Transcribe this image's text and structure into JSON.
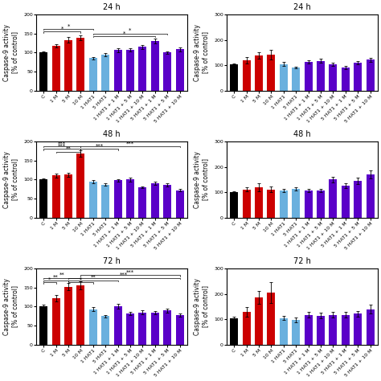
{
  "chart_data": [
    {
      "type": "bar",
      "title": "24 h",
      "ylabel": "Caspase-9 activity\n[% of control]",
      "ylim": [
        0,
        200
      ],
      "yticks": [
        0,
        50,
        100,
        150,
        200
      ],
      "categories": [
        "C",
        "1 M",
        "5 M",
        "10 M",
        "1 HAT1",
        "5 HAT1",
        "1 HAT1 + 1 M",
        "1 HAT1 + 5 M",
        "1 HAT1 + 10 M",
        "5 HAT1 + 1 M",
        "5 HAT1 + 5 M",
        "5 HAT1 + 10 M"
      ],
      "values": [
        100,
        118,
        133,
        138,
        86,
        95,
        107,
        108,
        115,
        130,
        100,
        109
      ],
      "errors": [
        3,
        5,
        7,
        6,
        3,
        4,
        5,
        4,
        5,
        6,
        4,
        5
      ],
      "colors": [
        "#000000",
        "#cc0000",
        "#cc0000",
        "#cc0000",
        "#6ab0de",
        "#6ab0de",
        "#5a00c8",
        "#5a00c8",
        "#5a00c8",
        "#5a00c8",
        "#5a00c8",
        "#5a00c8"
      ],
      "significance": [
        {
          "from": "C",
          "to": "10 M",
          "y": 155,
          "label": "*"
        },
        {
          "from": "C",
          "to": "1 HAT1",
          "y": 162,
          "label": "*"
        },
        {
          "from": "1 HAT1",
          "to": "5 HAT1 + 1 M",
          "y": 143,
          "label": "*"
        },
        {
          "from": "1 HAT1",
          "to": "5 HAT1 + 5 M",
          "y": 150,
          "label": "*"
        }
      ]
    },
    {
      "type": "bar",
      "title": "24 h",
      "ylabel": "Caspase-9 activity\n[% of control]",
      "ylim": [
        0,
        300
      ],
      "yticks": [
        0,
        100,
        200,
        300
      ],
      "categories": [
        "C",
        "1 M",
        "5 M",
        "10 M",
        "1 HAT1",
        "5 HAT1",
        "1 HAT1 + 1 M",
        "1 HAT1 + 5 M",
        "1 HAT1 + 10 M",
        "5 HAT1 + 1 M",
        "5 HAT1 + 5 M",
        "5 HAT1 + 10 M"
      ],
      "values": [
        103,
        121,
        138,
        142,
        105,
        92,
        115,
        118,
        105,
        92,
        110,
        122
      ],
      "errors": [
        5,
        12,
        12,
        18,
        8,
        4,
        6,
        8,
        6,
        5,
        7,
        9
      ],
      "colors": [
        "#000000",
        "#cc0000",
        "#cc0000",
        "#cc0000",
        "#6ab0de",
        "#6ab0de",
        "#5a00c8",
        "#5a00c8",
        "#5a00c8",
        "#5a00c8",
        "#5a00c8",
        "#5a00c8"
      ],
      "significance": []
    },
    {
      "type": "bar",
      "title": "48 h",
      "ylabel": "Caspase-9 activity\n[% of control]",
      "ylim": [
        0,
        200
      ],
      "yticks": [
        0,
        50,
        100,
        150,
        200
      ],
      "categories": [
        "C",
        "1 M",
        "5 M",
        "10 M",
        "1 HAT1",
        "5 HAT1",
        "1 HAT1 + 1 M",
        "1 HAT1 + 5 M",
        "1 HAT1 + 10 M",
        "5 HAT1 + 1 M",
        "5 HAT1 + 5 M",
        "5 HAT1 + 10 M"
      ],
      "values": [
        100,
        111,
        113,
        168,
        95,
        87,
        98,
        100,
        80,
        91,
        86,
        72
      ],
      "errors": [
        3,
        5,
        5,
        8,
        4,
        3,
        4,
        5,
        3,
        4,
        4,
        3
      ],
      "colors": [
        "#000000",
        "#cc0000",
        "#cc0000",
        "#cc0000",
        "#6ab0de",
        "#6ab0de",
        "#5a00c8",
        "#5a00c8",
        "#5a00c8",
        "#5a00c8",
        "#5a00c8",
        "#5a00c8"
      ],
      "significance": [
        {
          "from": "C",
          "to": "10 M",
          "y": 180,
          "label": "***"
        },
        {
          "from": "C",
          "to": "10 M",
          "y": 187,
          "label": "***"
        },
        {
          "from": "1 M",
          "to": "10 M",
          "y": 173,
          "label": "**"
        },
        {
          "from": "10 M",
          "to": "1 HAT1 + 1 M",
          "y": 180,
          "label": "***"
        },
        {
          "from": "10 M",
          "to": "5 HAT1 + 10 M",
          "y": 187,
          "label": "***"
        }
      ]
    },
    {
      "type": "bar",
      "title": "48 h",
      "ylabel": "Caspase-9 activity\n[% of control]",
      "ylim": [
        0,
        300
      ],
      "yticks": [
        0,
        100,
        200,
        300
      ],
      "categories": [
        "C",
        "1 M",
        "5 M",
        "10 M",
        "1 HAT1",
        "5 HAT1",
        "1 HAT1 + 1 M",
        "1 HAT1 + 5 M",
        "1 HAT1 + 10 M",
        "5 HAT1 + 1 M",
        "5 HAT1 + 5 M",
        "5 HAT1 + 10 M"
      ],
      "values": [
        100,
        111,
        120,
        112,
        107,
        113,
        108,
        108,
        150,
        127,
        145,
        170
      ],
      "errors": [
        5,
        8,
        15,
        10,
        7,
        6,
        7,
        6,
        12,
        9,
        12,
        15
      ],
      "colors": [
        "#000000",
        "#cc0000",
        "#cc0000",
        "#cc0000",
        "#6ab0de",
        "#6ab0de",
        "#5a00c8",
        "#5a00c8",
        "#5a00c8",
        "#5a00c8",
        "#5a00c8",
        "#5a00c8"
      ],
      "significance": []
    },
    {
      "type": "bar",
      "title": "72 h",
      "ylabel": "Caspase-9 activity\n[% of control]",
      "ylim": [
        0,
        200
      ],
      "yticks": [
        0,
        50,
        100,
        150,
        200
      ],
      "categories": [
        "C",
        "1 M",
        "5 M",
        "10 M",
        "1 HAT1",
        "5 HAT1",
        "1 HAT1 + 1 M",
        "1 HAT1 + 5 M",
        "1 HAT1 + 10 M",
        "5 HAT1 + 1 M",
        "5 HAT1 + 5 M",
        "5 HAT1 + 10 M"
      ],
      "values": [
        100,
        122,
        152,
        155,
        93,
        75,
        101,
        82,
        85,
        85,
        90,
        78
      ],
      "errors": [
        5,
        8,
        10,
        10,
        5,
        4,
        6,
        4,
        5,
        4,
        5,
        4
      ],
      "colors": [
        "#000000",
        "#cc0000",
        "#cc0000",
        "#cc0000",
        "#6ab0de",
        "#6ab0de",
        "#5a00c8",
        "#5a00c8",
        "#5a00c8",
        "#5a00c8",
        "#5a00c8",
        "#5a00c8"
      ],
      "significance": [
        {
          "from": "C",
          "to": "1 M",
          "y": 163,
          "label": "*"
        },
        {
          "from": "C",
          "to": "5 M",
          "y": 169,
          "label": "**"
        },
        {
          "from": "C",
          "to": "10 M",
          "y": 175,
          "label": "**"
        },
        {
          "from": "5 M",
          "to": "1 HAT1",
          "y": 163,
          "label": "*"
        },
        {
          "from": "5 M",
          "to": "1 HAT1 + 1 M",
          "y": 169,
          "label": "**"
        },
        {
          "from": "5 M",
          "to": "5 HAT1 + 10 M",
          "y": 175,
          "label": "***"
        },
        {
          "from": "10 M",
          "to": "5 HAT1 + 10 M",
          "y": 182,
          "label": "***"
        }
      ]
    },
    {
      "type": "bar",
      "title": "72 h",
      "ylabel": "Caspase-9 activity\n[% of control]",
      "ylim": [
        0,
        300
      ],
      "yticks": [
        0,
        100,
        200,
        300
      ],
      "categories": [
        "C",
        "1 M",
        "5 M",
        "10 M",
        "1 HAT1",
        "5 HAT1",
        "1 HAT1 + 1 M",
        "1 HAT1 + 5 M",
        "1 HAT1 + 10 M",
        "5 HAT1 + 1 M",
        "5 HAT1 + 5 M",
        "5 HAT1 + 10 M"
      ],
      "values": [
        103,
        130,
        185,
        205,
        105,
        98,
        118,
        115,
        118,
        118,
        122,
        140
      ],
      "errors": [
        8,
        18,
        25,
        40,
        8,
        8,
        10,
        10,
        10,
        10,
        12,
        18
      ],
      "colors": [
        "#000000",
        "#cc0000",
        "#cc0000",
        "#cc0000",
        "#6ab0de",
        "#6ab0de",
        "#5a00c8",
        "#5a00c8",
        "#5a00c8",
        "#5a00c8",
        "#5a00c8",
        "#5a00c8"
      ],
      "significance": []
    }
  ]
}
